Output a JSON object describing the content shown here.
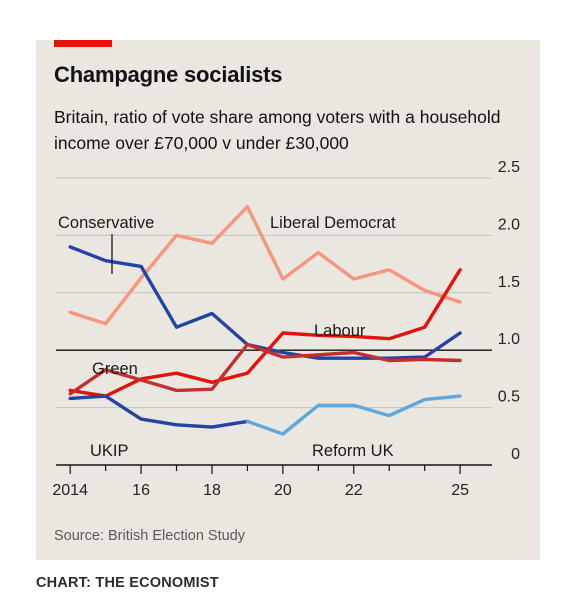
{
  "title": "Champagne socialists",
  "subtitle": "Britain, ratio of vote share among voters with a household income over £70,000 v under £30,000",
  "source": "Source: British Election Study",
  "credit": "CHART: THE ECONOMIST",
  "colors": {
    "background": "#e9e7df",
    "accent": "#e3120b",
    "conservative": "#2343a6",
    "liberal_democrat": "#f6967a",
    "labour": "#e3120b",
    "green": "#c42e2e",
    "ukip": "#2343a6",
    "reform_uk": "#5fa8d9"
  },
  "chart_data": {
    "type": "line",
    "xlabel": "",
    "ylabel": "",
    "xlim": [
      2013.6,
      2025.9
    ],
    "ylim": [
      0,
      2.5
    ],
    "x_ticks": [
      2014,
      2016,
      2018,
      2020,
      2022,
      2025
    ],
    "x_tick_labels": [
      "2014",
      "16",
      "18",
      "20",
      "22",
      "25"
    ],
    "y_ticks": [
      0,
      0.5,
      1.0,
      1.5,
      2.0,
      2.5
    ],
    "y_tick_labels": [
      "0",
      "0.5",
      "1.0",
      "1.5",
      "2.0",
      "2.5"
    ],
    "reference_line": 1.0,
    "grid": true,
    "series": [
      {
        "name": "Liberal Democrat",
        "color": "#f6967a",
        "x": [
          2014,
          2015,
          2016,
          2017,
          2018,
          2019,
          2020,
          2021,
          2022,
          2023,
          2024,
          2025
        ],
        "y": [
          1.33,
          1.23,
          1.63,
          2.0,
          1.93,
          2.25,
          1.62,
          1.85,
          1.62,
          1.7,
          1.52,
          1.42
        ]
      },
      {
        "name": "Conservative",
        "color": "#2343a6",
        "x": [
          2014,
          2015,
          2016,
          2017,
          2018,
          2019,
          2020,
          2021,
          2022,
          2023,
          2024,
          2025
        ],
        "y": [
          1.9,
          1.78,
          1.73,
          1.2,
          1.32,
          1.05,
          0.98,
          0.93,
          0.93,
          0.93,
          0.94,
          1.15
        ]
      },
      {
        "name": "Labour",
        "color": "#e3120b",
        "x": [
          2014,
          2015,
          2016,
          2017,
          2018,
          2019,
          2020,
          2021,
          2022,
          2023,
          2024,
          2025
        ],
        "y": [
          0.65,
          0.6,
          0.75,
          0.8,
          0.72,
          0.8,
          1.15,
          1.13,
          1.12,
          1.1,
          1.2,
          1.7
        ]
      },
      {
        "name": "Green",
        "color": "#c42e2e",
        "x": [
          2014,
          2015,
          2016,
          2017,
          2018,
          2019,
          2020,
          2021,
          2022,
          2023,
          2024,
          2025
        ],
        "y": [
          0.62,
          0.83,
          0.74,
          0.65,
          0.66,
          1.05,
          0.94,
          0.96,
          0.98,
          0.91,
          0.92,
          0.91
        ]
      },
      {
        "name": "UKIP",
        "color": "#2343a6",
        "x": [
          2014,
          2015,
          2016,
          2017,
          2018,
          2019
        ],
        "y": [
          0.58,
          0.6,
          0.4,
          0.35,
          0.33,
          0.38
        ]
      },
      {
        "name": "Reform UK",
        "color": "#5fa8d9",
        "x": [
          2019,
          2020,
          2021,
          2022,
          2023,
          2024,
          2025
        ],
        "y": [
          0.38,
          0.27,
          0.52,
          0.52,
          0.43,
          0.57,
          0.6
        ]
      }
    ]
  }
}
